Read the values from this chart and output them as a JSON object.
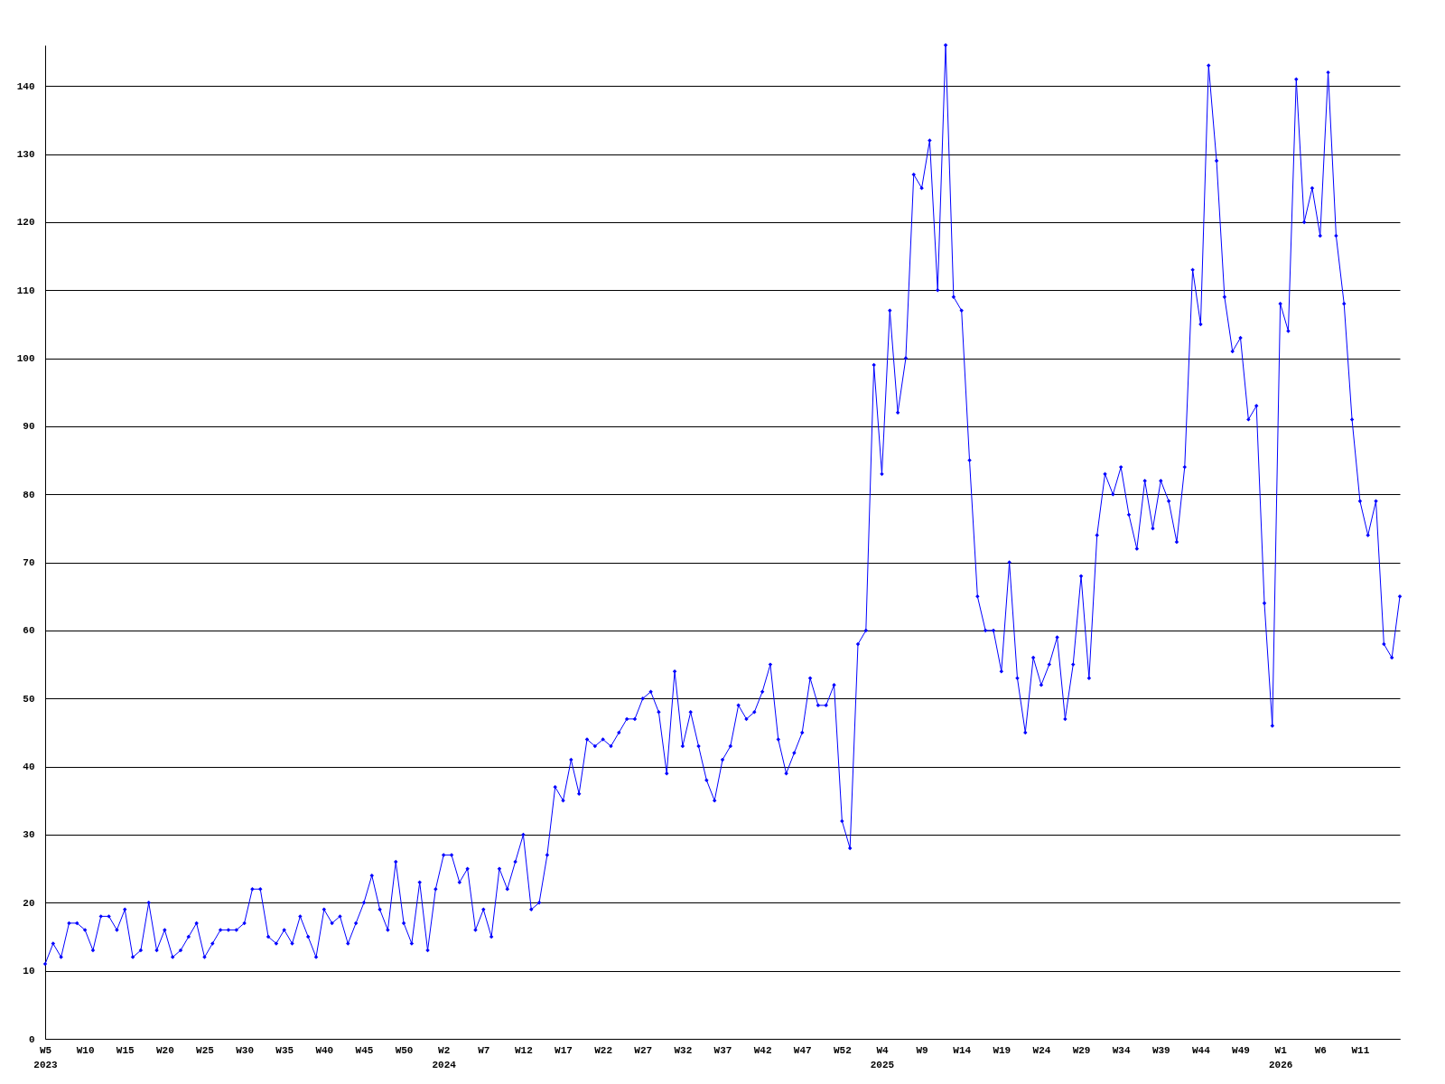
{
  "chart_data": {
    "type": "line",
    "categories": [
      "W5 2023",
      null,
      null,
      null,
      null,
      "W10",
      null,
      null,
      null,
      null,
      "W15",
      null,
      null,
      null,
      null,
      "W20",
      null,
      null,
      null,
      null,
      "W25",
      null,
      null,
      null,
      null,
      "W30",
      null,
      null,
      null,
      null,
      "W35",
      null,
      null,
      null,
      null,
      "W40",
      null,
      null,
      null,
      null,
      "W45",
      null,
      null,
      null,
      null,
      "W50",
      null,
      null,
      null,
      null,
      "W2 2024",
      null,
      null,
      null,
      null,
      "W7",
      null,
      null,
      null,
      null,
      "W12",
      null,
      null,
      null,
      null,
      "W17",
      null,
      null,
      null,
      null,
      "W22",
      null,
      null,
      null,
      null,
      "W27",
      null,
      null,
      null,
      null,
      "W32",
      null,
      null,
      null,
      null,
      "W37",
      null,
      null,
      null,
      null,
      "W42",
      null,
      null,
      null,
      null,
      "W47",
      null,
      null,
      null,
      null,
      "W52",
      null,
      null,
      null,
      null,
      "W4 2025",
      null,
      null,
      null,
      null,
      "W9",
      null,
      null,
      null,
      null,
      "W14",
      null,
      null,
      null,
      null,
      "W19",
      null,
      null,
      null,
      null,
      "W24",
      null,
      null,
      null,
      null,
      "W29",
      null,
      null,
      null,
      null,
      "W34",
      null,
      null,
      null,
      null,
      "W39",
      null,
      null,
      null,
      null,
      "W44",
      null,
      null,
      null,
      null,
      "W49",
      null,
      null,
      null,
      null,
      "W1 2026",
      null,
      null,
      null,
      null,
      "W6",
      null,
      null,
      null,
      null,
      "W11",
      null,
      null,
      null,
      null,
      null
    ],
    "series": [
      {
        "color": "#0000ff",
        "values": [
          11,
          14,
          12,
          17,
          17,
          16,
          13,
          18,
          18,
          16,
          19,
          12,
          13,
          20,
          13,
          16,
          12,
          13,
          15,
          17,
          12,
          14,
          16,
          16,
          16,
          17,
          22,
          22,
          15,
          14,
          16,
          14,
          18,
          15,
          12,
          19,
          17,
          18,
          14,
          17,
          20,
          24,
          19,
          16,
          26,
          17,
          14,
          23,
          13,
          22,
          27,
          27,
          23,
          25,
          16,
          19,
          15,
          25,
          22,
          26,
          30,
          19,
          20,
          27,
          37,
          35,
          41,
          36,
          44,
          43,
          44,
          43,
          45,
          47,
          47,
          50,
          51,
          48,
          39,
          54,
          43,
          48,
          43,
          38,
          35,
          41,
          43,
          49,
          47,
          48,
          51,
          55,
          44,
          39,
          42,
          45,
          53,
          49,
          49,
          52,
          32,
          28,
          58,
          60,
          99,
          83,
          107,
          92,
          100,
          127,
          125,
          132,
          110,
          146,
          109,
          107,
          85,
          65,
          60,
          60,
          54,
          70,
          53,
          45,
          56,
          52,
          55,
          59,
          47,
          55,
          68,
          53,
          74,
          83,
          80,
          84,
          77,
          72,
          82,
          75,
          82,
          79,
          73,
          84,
          113,
          105,
          143,
          129,
          109,
          101,
          103,
          91,
          93,
          64,
          46,
          108,
          104,
          141,
          120,
          125,
          118,
          142,
          118,
          108,
          91,
          79,
          74,
          79,
          58,
          56,
          65
        ]
      }
    ],
    "ylim": [
      0,
      146
    ],
    "yticks": [
      0,
      10,
      20,
      30,
      40,
      50,
      60,
      70,
      80,
      90,
      100,
      110,
      120,
      130,
      140
    ],
    "grid": "y",
    "marker": "diamond",
    "line_style": "solid"
  }
}
